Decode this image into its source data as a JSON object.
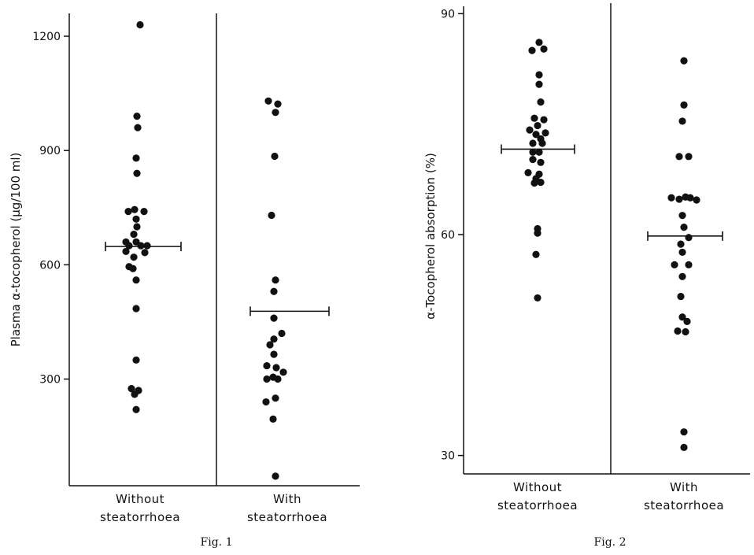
{
  "chart_data": [
    {
      "type": "scatter",
      "title": "",
      "caption": "Fig. 1",
      "ylabel": "Plasma α-tocopherol (μg/100 ml)",
      "xlabel": "",
      "ylim": [
        20,
        1260
      ],
      "yticks": [
        300,
        600,
        900,
        1200
      ],
      "grid": false,
      "categories": [
        {
          "line1": "Without",
          "line2": "steatorrhoea"
        },
        {
          "line1": "With",
          "line2": "steatorrhoea"
        }
      ],
      "series": [
        {
          "points": [
            [
              0,
              1230
            ],
            [
              -4,
              990
            ],
            [
              -3,
              960
            ],
            [
              -5,
              880
            ],
            [
              -4,
              840
            ],
            [
              -15,
              740
            ],
            [
              -7,
              745
            ],
            [
              5,
              740
            ],
            [
              -5,
              720
            ],
            [
              -4,
              700
            ],
            [
              -8,
              680
            ],
            [
              -18,
              660
            ],
            [
              -5,
              660
            ],
            [
              -14,
              650
            ],
            [
              1,
              650
            ],
            [
              9,
              650
            ],
            [
              -18,
              635
            ],
            [
              6,
              632
            ],
            [
              -8,
              620
            ],
            [
              -9,
              590
            ],
            [
              -14,
              595
            ],
            [
              -5,
              560
            ],
            [
              -5,
              485
            ],
            [
              -5,
              350
            ],
            [
              -11,
              275
            ],
            [
              -7,
              260
            ],
            [
              -2,
              270
            ],
            [
              -5,
              220
            ]
          ],
          "mean": 648
        },
        {
          "points": [
            [
              -24,
              1030
            ],
            [
              -12,
              1022
            ],
            [
              -15,
              1000
            ],
            [
              -16,
              885
            ],
            [
              -20,
              730
            ],
            [
              -15,
              560
            ],
            [
              -17,
              530
            ],
            [
              -17,
              460
            ],
            [
              -7,
              420
            ],
            [
              -17,
              405
            ],
            [
              -22,
              390
            ],
            [
              -17,
              365
            ],
            [
              -26,
              335
            ],
            [
              -14,
              330
            ],
            [
              -5,
              318
            ],
            [
              -18,
              305
            ],
            [
              -26,
              300
            ],
            [
              -12,
              300
            ],
            [
              -15,
              250
            ],
            [
              -27,
              240
            ],
            [
              -18,
              195
            ],
            [
              -15,
              45
            ]
          ],
          "mean": 478
        }
      ]
    },
    {
      "type": "scatter",
      "title": "",
      "caption": "Fig. 2",
      "ylabel": "α-Tocopherol absorption (%)",
      "xlabel": "",
      "ylim": [
        27.5,
        91
      ],
      "yticks": [
        30,
        60,
        90
      ],
      "grid": false,
      "categories": [
        {
          "line1": "Without",
          "line2": "steatorrhoea"
        },
        {
          "line1": "With",
          "line2": "steatorrhoea"
        }
      ],
      "series": [
        {
          "points": [
            [
              2,
              86.1
            ],
            [
              -7,
              85
            ],
            [
              8,
              85.2
            ],
            [
              2,
              81.7
            ],
            [
              2,
              80.4
            ],
            [
              4,
              78
            ],
            [
              -4,
              75.8
            ],
            [
              8,
              75.6
            ],
            [
              0,
              74.8
            ],
            [
              -10,
              74.2
            ],
            [
              -2,
              73.6
            ],
            [
              10,
              73.8
            ],
            [
              4,
              73
            ],
            [
              -6,
              72.4
            ],
            [
              6,
              72.4
            ],
            [
              -6,
              71.2
            ],
            [
              2,
              71.2
            ],
            [
              -6,
              70.2
            ],
            [
              4,
              69.8
            ],
            [
              -12,
              68.4
            ],
            [
              2,
              68.2
            ],
            [
              -2,
              67.6
            ],
            [
              -4,
              67
            ],
            [
              4,
              67.1
            ],
            [
              0,
              60.8
            ],
            [
              0,
              60.2
            ],
            [
              -2,
              57.3
            ],
            [
              0,
              51.4
            ]
          ],
          "mean": 71.6
        },
        {
          "points": [
            [
              0,
              83.6
            ],
            [
              0,
              77.6
            ],
            [
              -2,
              75.4
            ],
            [
              -6,
              70.6
            ],
            [
              6,
              70.6
            ],
            [
              -16,
              65
            ],
            [
              -6,
              64.8
            ],
            [
              2,
              65.1
            ],
            [
              8,
              65
            ],
            [
              16,
              64.7
            ],
            [
              -2,
              62.6
            ],
            [
              0,
              61
            ],
            [
              6,
              59.6
            ],
            [
              -4,
              58.7
            ],
            [
              -2,
              57.6
            ],
            [
              -12,
              55.9
            ],
            [
              6,
              55.9
            ],
            [
              -2,
              54.3
            ],
            [
              -4,
              51.6
            ],
            [
              -2,
              48.8
            ],
            [
              4,
              48.2
            ],
            [
              -8,
              46.9
            ],
            [
              2,
              46.8
            ],
            [
              0,
              33.2
            ],
            [
              0,
              31.1
            ]
          ],
          "mean": 59.8
        }
      ]
    }
  ]
}
